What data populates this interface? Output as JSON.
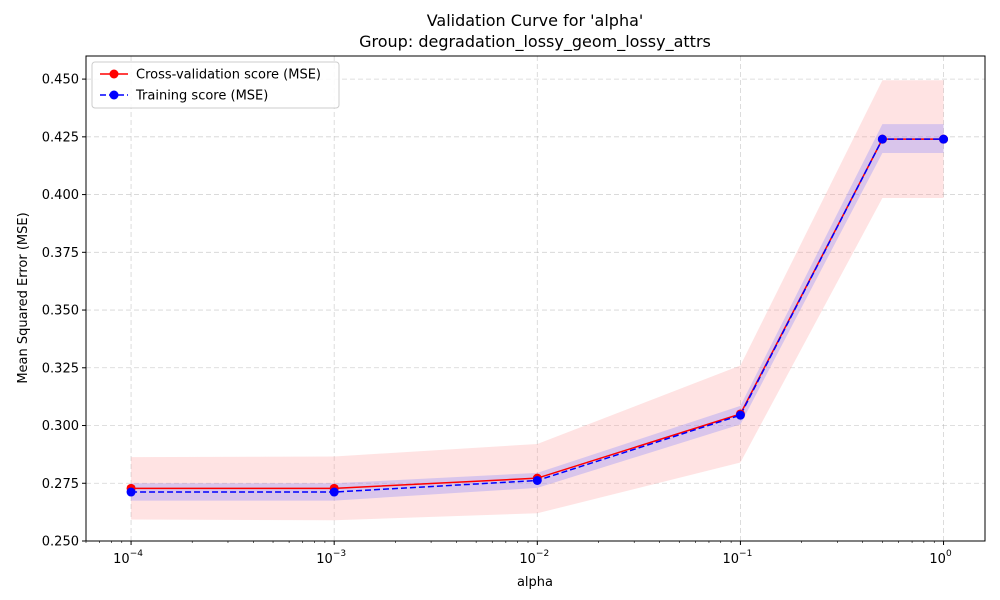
{
  "chart_data": {
    "type": "line",
    "title": "Validation Curve for 'alpha'",
    "subtitle": "Group: degradation_lossy_geom_lossy_attrs",
    "xlabel": "alpha",
    "ylabel": "Mean Squared Error (MSE)",
    "x_scale": "log",
    "xlim": [
      6e-05,
      1.6
    ],
    "ylim": [
      0.25,
      0.46
    ],
    "x_ticks": [
      {
        "value": 0.0001,
        "base": "10",
        "exp": "−4"
      },
      {
        "value": 0.001,
        "base": "10",
        "exp": "−3"
      },
      {
        "value": 0.01,
        "base": "10",
        "exp": "−2"
      },
      {
        "value": 0.1,
        "base": "10",
        "exp": "−1"
      },
      {
        "value": 1,
        "base": "10",
        "exp": "0"
      }
    ],
    "y_ticks": [
      "0.250",
      "0.275",
      "0.300",
      "0.325",
      "0.350",
      "0.375",
      "0.400",
      "0.425",
      "0.450"
    ],
    "grid": true,
    "legend": "top-left",
    "x": [
      0.0001,
      0.001,
      0.01,
      0.1,
      0.5,
      1.0
    ],
    "series": [
      {
        "name": "Cross-validation score (MSE)",
        "color": "#ff0000",
        "band_color": "#ff9999",
        "line_style": "solid",
        "values": [
          0.2728,
          0.2728,
          0.2772,
          0.305,
          0.424,
          0.424
        ],
        "band_lower": [
          0.2593,
          0.259,
          0.262,
          0.284,
          0.3985,
          0.3985
        ],
        "band_upper": [
          0.2863,
          0.2866,
          0.292,
          0.326,
          0.4495,
          0.4495
        ]
      },
      {
        "name": "Training score (MSE)",
        "color": "#0000ff",
        "band_color": "#8080ff",
        "line_style": "dashed",
        "values": [
          0.2712,
          0.2712,
          0.2762,
          0.3045,
          0.424,
          0.424
        ],
        "band_lower": [
          0.2675,
          0.2675,
          0.273,
          0.3005,
          0.418,
          0.418
        ],
        "band_upper": [
          0.275,
          0.275,
          0.2795,
          0.3085,
          0.4305,
          0.4305
        ]
      }
    ]
  }
}
